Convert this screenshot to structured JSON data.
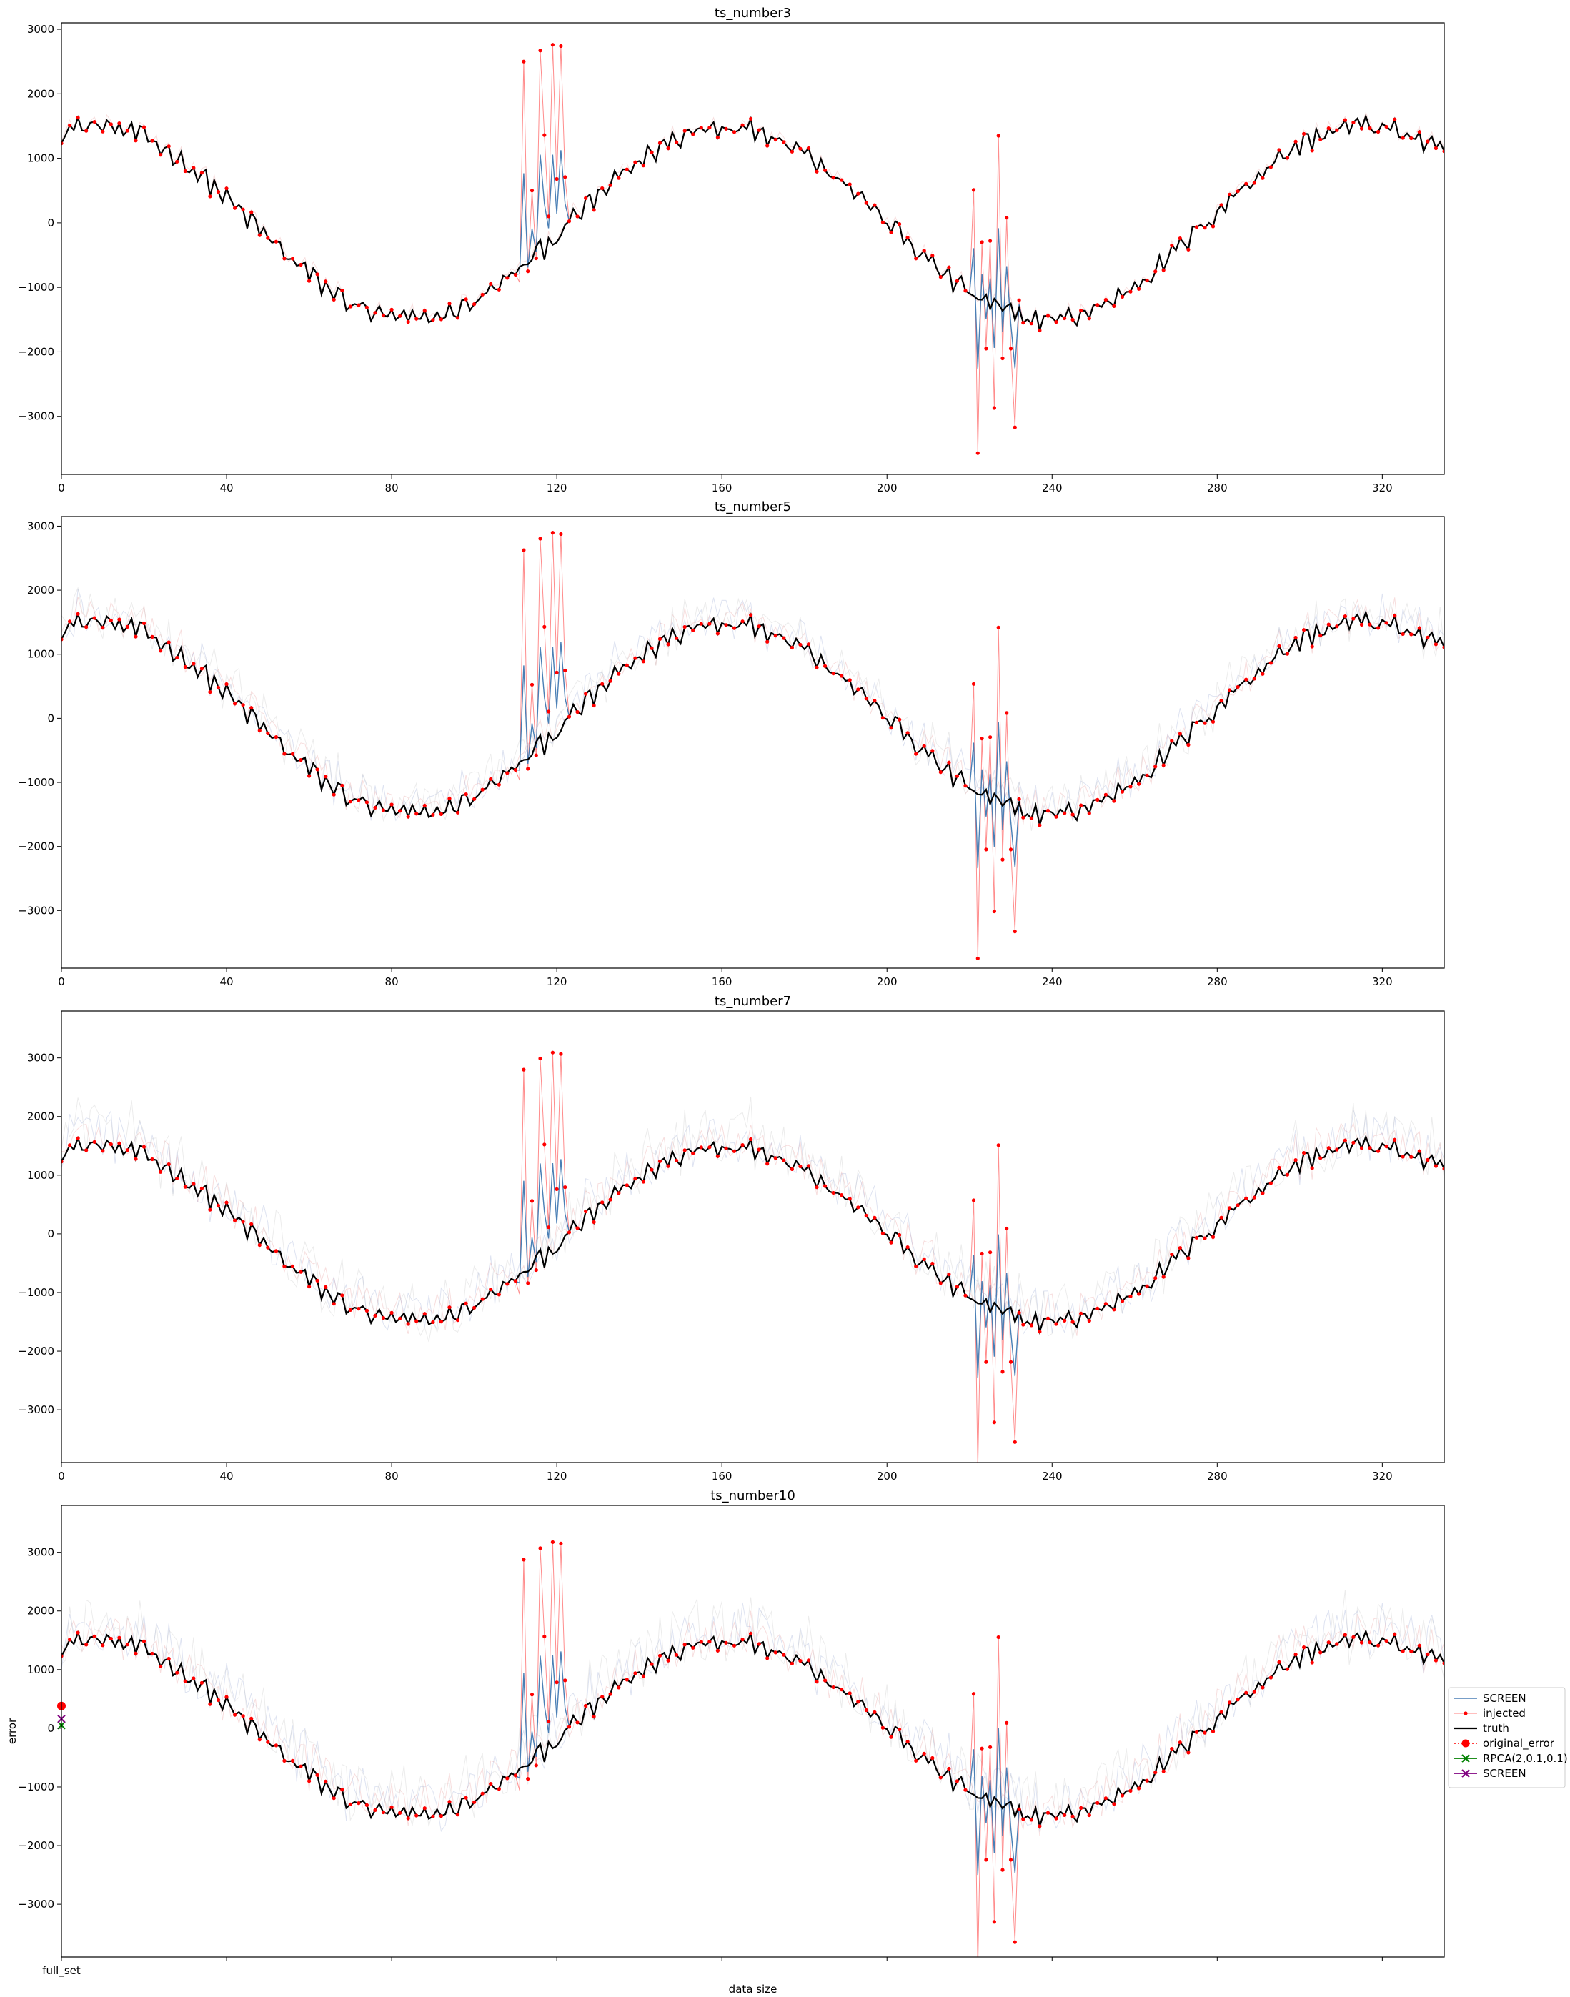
{
  "chart_data": {
    "type": "line",
    "panels": [
      {
        "title": "ts_number3",
        "x_ticks": [
          0,
          40,
          80,
          120,
          160,
          200,
          240,
          280,
          320
        ],
        "y_ticks": [
          -3000,
          -2000,
          -1000,
          0,
          1000,
          2000,
          3000
        ],
        "xlim": [
          0,
          335
        ],
        "ylim": [
          -3900,
          3100
        ],
        "anomaly_scale": 1.0,
        "bg_amp": 150
      },
      {
        "title": "ts_number5",
        "x_ticks": [
          0,
          40,
          80,
          120,
          160,
          200,
          240,
          280,
          320
        ],
        "y_ticks": [
          -3000,
          -2000,
          -1000,
          0,
          1000,
          2000,
          3000
        ],
        "xlim": [
          0,
          335
        ],
        "ylim": [
          -3900,
          3150
        ],
        "anomaly_scale": 1.05,
        "bg_amp": 450
      },
      {
        "title": "ts_number7",
        "x_ticks": [
          0,
          40,
          80,
          120,
          160,
          200,
          240,
          280,
          320
        ],
        "y_ticks": [
          -3000,
          -2000,
          -1000,
          0,
          1000,
          2000,
          3000
        ],
        "xlim": [
          0,
          335
        ],
        "ylim": [
          -3900,
          3800
        ],
        "anomaly_scale": 1.12,
        "bg_amp": 650
      },
      {
        "title": "ts_number10",
        "x_ticks_labels": [
          "full_set"
        ],
        "y_ticks": [
          -3000,
          -2000,
          -1000,
          0,
          1000,
          2000,
          3000
        ],
        "xlim": [
          0,
          335
        ],
        "ylim": [
          -3900,
          3800
        ],
        "xlabel": "data size",
        "ylabel": "error",
        "anomaly_scale": 1.15,
        "bg_amp": 700,
        "error_points": {
          "original_error": 380,
          "rpca": 50,
          "screen": 160
        }
      }
    ],
    "truth_model": {
      "description": "seasonal signal",
      "amplitude": 1500,
      "period": 154,
      "phase_deg": 72
    },
    "anomaly_windows": [
      {
        "x": [
          111,
          112,
          113,
          114,
          115,
          116,
          117,
          118,
          119,
          120,
          121,
          122
        ],
        "injected": [
          -920,
          2500,
          -750,
          500,
          -550,
          2670,
          1360,
          100,
          2760,
          680,
          2740,
          710
        ]
      },
      {
        "x": [
          221,
          222,
          223,
          224,
          225,
          226,
          227,
          228,
          229,
          230,
          231,
          232
        ],
        "injected": [
          510,
          -3570,
          -300,
          -1950,
          -280,
          -2870,
          1350,
          -2100,
          80,
          -1950,
          -3170,
          -1200
        ]
      }
    ],
    "legend": {
      "placement": "right",
      "entries": [
        {
          "label": "SCREEN",
          "color": "#4a7fb5"
        },
        {
          "label": "injected",
          "color": "#ff0000"
        },
        {
          "label": "truth",
          "color": "#000000"
        },
        {
          "label": "original_error",
          "color": "#ff0000"
        },
        {
          "label": "RPCA(2,0.1,0.1)",
          "color": "#008000"
        },
        {
          "label": "SCREEN",
          "color": "#800080"
        }
      ]
    },
    "colors": {
      "truth": "#000000",
      "injected": "#ff0000",
      "screen": "#4a7fb5",
      "rpca": "#008000",
      "screen_error": "#800080"
    }
  }
}
